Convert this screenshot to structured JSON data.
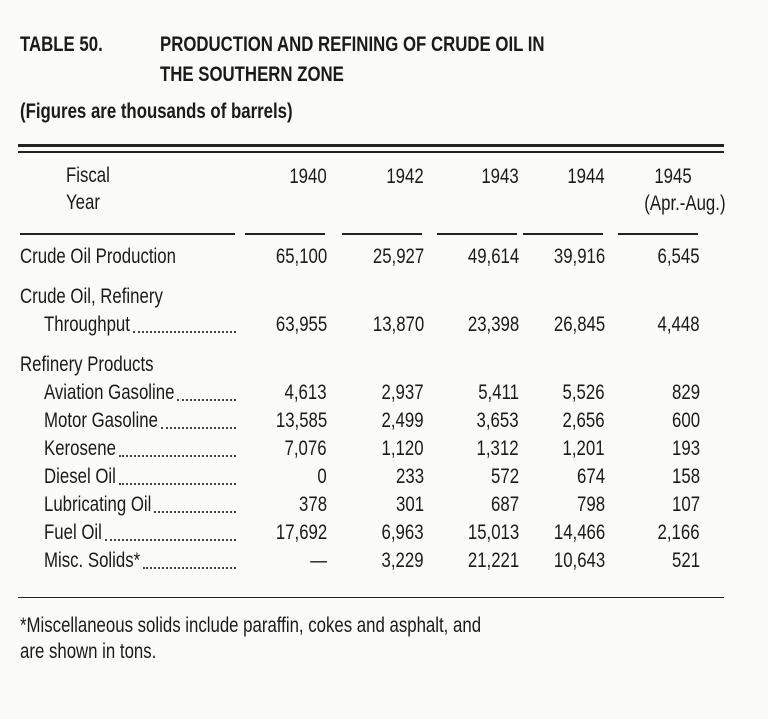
{
  "title": {
    "number": "TABLE 50.",
    "lines": [
      "PRODUCTION AND REFINING OF CRUDE OIL IN",
      "THE SOUTHERN ZONE"
    ]
  },
  "subtitle": "(Figures are thousands of barrels)",
  "table": {
    "header": {
      "stub": [
        "Fiscal",
        "Year"
      ],
      "columns": [
        {
          "year": "1940"
        },
        {
          "year": "1942"
        },
        {
          "year": "1943"
        },
        {
          "year": "1944"
        },
        {
          "year": "1945",
          "note": "(Apr.-Aug.)"
        }
      ]
    },
    "rows": [
      {
        "label": [
          "Crude Oil Production"
        ],
        "values": [
          "65,100",
          "25,927",
          "49,614",
          "39,916",
          "6,545"
        ]
      },
      {
        "label": [
          "Crude Oil, Refinery",
          "Throughput"
        ],
        "values": [
          "63,955",
          "13,870",
          "23,398",
          "26,845",
          "4,448"
        ]
      },
      {
        "label": [
          "Refinery Products"
        ],
        "items": [
          {
            "label": "Aviation Gasoline",
            "values": [
              "4,613",
              "2,937",
              "5,411",
              "5,526",
              "829"
            ]
          },
          {
            "label": "Motor Gasoline",
            "values": [
              "13,585",
              "2,499",
              "3,653",
              "2,656",
              "600"
            ]
          },
          {
            "label": "Kerosene",
            "values": [
              "7,076",
              "1,120",
              "1,312",
              "1,201",
              "193"
            ]
          },
          {
            "label": "Diesel Oil",
            "values": [
              "0",
              "233",
              "572",
              "674",
              "158"
            ]
          },
          {
            "label": "Lubricating Oil",
            "values": [
              "378",
              "301",
              "687",
              "798",
              "107"
            ]
          },
          {
            "label": "Fuel Oil",
            "values": [
              "17,692",
              "6,963",
              "15,013",
              "14,466",
              "2,166"
            ]
          },
          {
            "label": "Misc. Solids*",
            "values": [
              "—",
              "3,229",
              "21,221",
              "10,643",
              "521"
            ]
          }
        ]
      }
    ]
  },
  "footnote": [
    "*Miscellaneous solids include paraffin, cokes and asphalt, and",
    "are shown in tons."
  ]
}
